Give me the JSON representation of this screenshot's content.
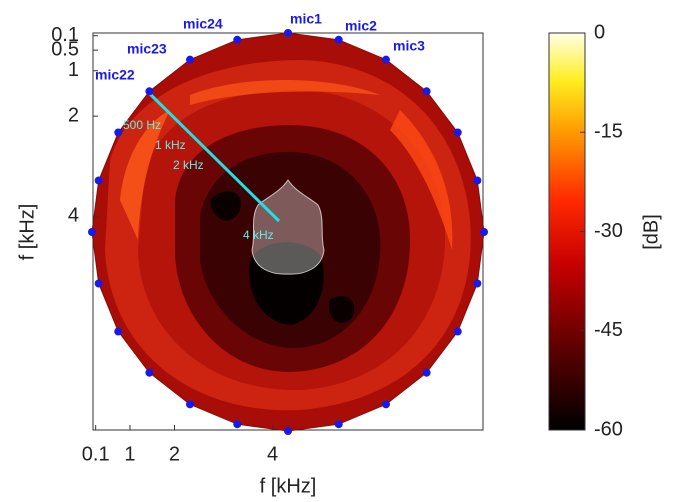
{
  "chart_data": {
    "type": "contour",
    "xlabel": "f [kHz]",
    "ylabel": "f [kHz]",
    "xlim": [
      0,
      4.3
    ],
    "xticks": [
      0.1,
      1,
      2,
      4
    ],
    "ylim": [
      0,
      4.3
    ],
    "yticks": [
      0.1,
      0.5,
      1,
      2,
      4
    ],
    "colorbar": {
      "label": "[dB]",
      "lim": [
        -60,
        0
      ],
      "ticks": [
        0,
        -15,
        -30,
        -45,
        -60
      ]
    },
    "mic_labels": [
      "mic1",
      "mic2",
      "mic3",
      "mic22",
      "mic23",
      "mic24"
    ],
    "line_labels": [
      "500 Hz",
      "1 kHz",
      "2 kHz",
      "4 kHz"
    ]
  }
}
